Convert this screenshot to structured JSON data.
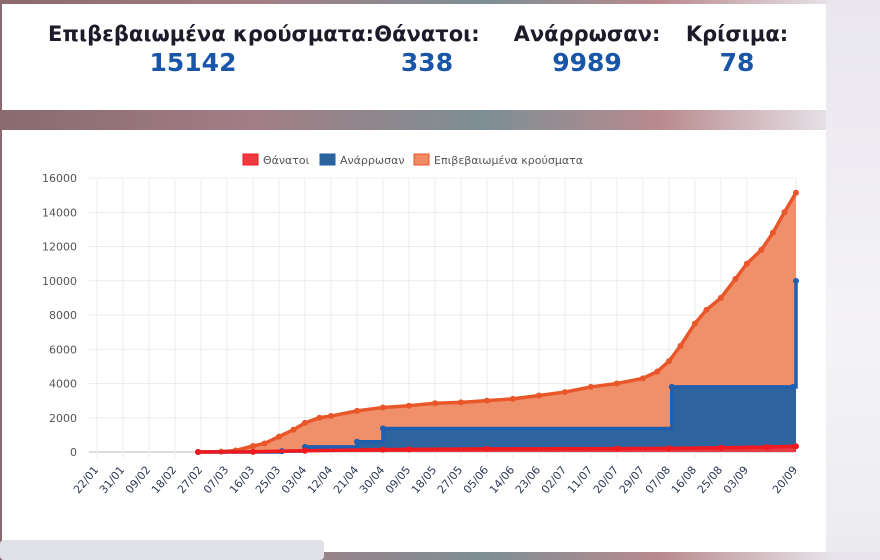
{
  "stats": [
    {
      "label": "Επιβεβαιωμένα κρούσματα:",
      "value": "15142"
    },
    {
      "label": "Θάνατοι:",
      "value": "338"
    },
    {
      "label": "Ανάρρωσαν:",
      "value": "9989"
    },
    {
      "label": "Κρίσιμα:",
      "value": "78"
    }
  ],
  "chart_data": {
    "type": "area",
    "legend_position": "top",
    "grid": true,
    "ylim": [
      0,
      16000
    ],
    "yticks": [
      0,
      2000,
      4000,
      6000,
      8000,
      10000,
      12000,
      14000,
      16000
    ],
    "xticks": [
      "22/01",
      "31/01",
      "09/02",
      "18/02",
      "27/02",
      "07/03",
      "16/03",
      "25/03",
      "03/04",
      "12/04",
      "21/04",
      "30/04",
      "09/05",
      "18/05",
      "27/05",
      "05/06",
      "14/06",
      "23/06",
      "02/07",
      "11/07",
      "20/07",
      "29/07",
      "07/08",
      "16/08",
      "25/08",
      "03/09",
      "20/09"
    ],
    "xrange": [
      "2020-01-22",
      "2020-09-20"
    ],
    "series": [
      {
        "name": "Επιβεβαιωμένα κρούσματα",
        "color": "#ef8a62",
        "line_color": "#e8562a",
        "step": false,
        "points": [
          [
            "2020-02-26",
            3
          ],
          [
            "2020-03-05",
            20
          ],
          [
            "2020-03-10",
            90
          ],
          [
            "2020-03-16",
            350
          ],
          [
            "2020-03-20",
            500
          ],
          [
            "2020-03-25",
            900
          ],
          [
            "2020-03-30",
            1300
          ],
          [
            "2020-04-03",
            1700
          ],
          [
            "2020-04-08",
            2000
          ],
          [
            "2020-04-12",
            2100
          ],
          [
            "2020-04-21",
            2400
          ],
          [
            "2020-04-30",
            2600
          ],
          [
            "2020-05-09",
            2700
          ],
          [
            "2020-05-18",
            2850
          ],
          [
            "2020-05-27",
            2900
          ],
          [
            "2020-06-05",
            3000
          ],
          [
            "2020-06-14",
            3100
          ],
          [
            "2020-06-23",
            3300
          ],
          [
            "2020-07-02",
            3500
          ],
          [
            "2020-07-11",
            3800
          ],
          [
            "2020-07-20",
            4000
          ],
          [
            "2020-07-29",
            4300
          ],
          [
            "2020-08-03",
            4700
          ],
          [
            "2020-08-07",
            5300
          ],
          [
            "2020-08-11",
            6200
          ],
          [
            "2020-08-16",
            7500
          ],
          [
            "2020-08-20",
            8300
          ],
          [
            "2020-08-25",
            9000
          ],
          [
            "2020-08-30",
            10100
          ],
          [
            "2020-09-03",
            11000
          ],
          [
            "2020-09-08",
            11800
          ],
          [
            "2020-09-12",
            12800
          ],
          [
            "2020-09-16",
            14000
          ],
          [
            "2020-09-20",
            15142
          ]
        ]
      },
      {
        "name": "Ανάρρωσαν",
        "color": "#2d64a0",
        "line_color": "#1f5fb0",
        "step": true,
        "points": [
          [
            "2020-02-26",
            0
          ],
          [
            "2020-03-26",
            52
          ],
          [
            "2020-04-03",
            300
          ],
          [
            "2020-04-21",
            600
          ],
          [
            "2020-04-30",
            1374
          ],
          [
            "2020-08-08",
            3804
          ],
          [
            "2020-09-19",
            3804
          ],
          [
            "2020-09-20",
            9989
          ]
        ]
      },
      {
        "name": "Θάνατοι",
        "color": "#f0383f",
        "line_color": "#f0191f",
        "step": false,
        "points": [
          [
            "2020-02-26",
            0
          ],
          [
            "2020-03-16",
            10
          ],
          [
            "2020-04-03",
            70
          ],
          [
            "2020-04-30",
            140
          ],
          [
            "2020-05-09",
            150
          ],
          [
            "2020-06-05",
            180
          ],
          [
            "2020-07-20",
            200
          ],
          [
            "2020-08-07",
            215
          ],
          [
            "2020-08-25",
            250
          ],
          [
            "2020-09-10",
            290
          ],
          [
            "2020-09-20",
            338
          ]
        ]
      }
    ]
  }
}
